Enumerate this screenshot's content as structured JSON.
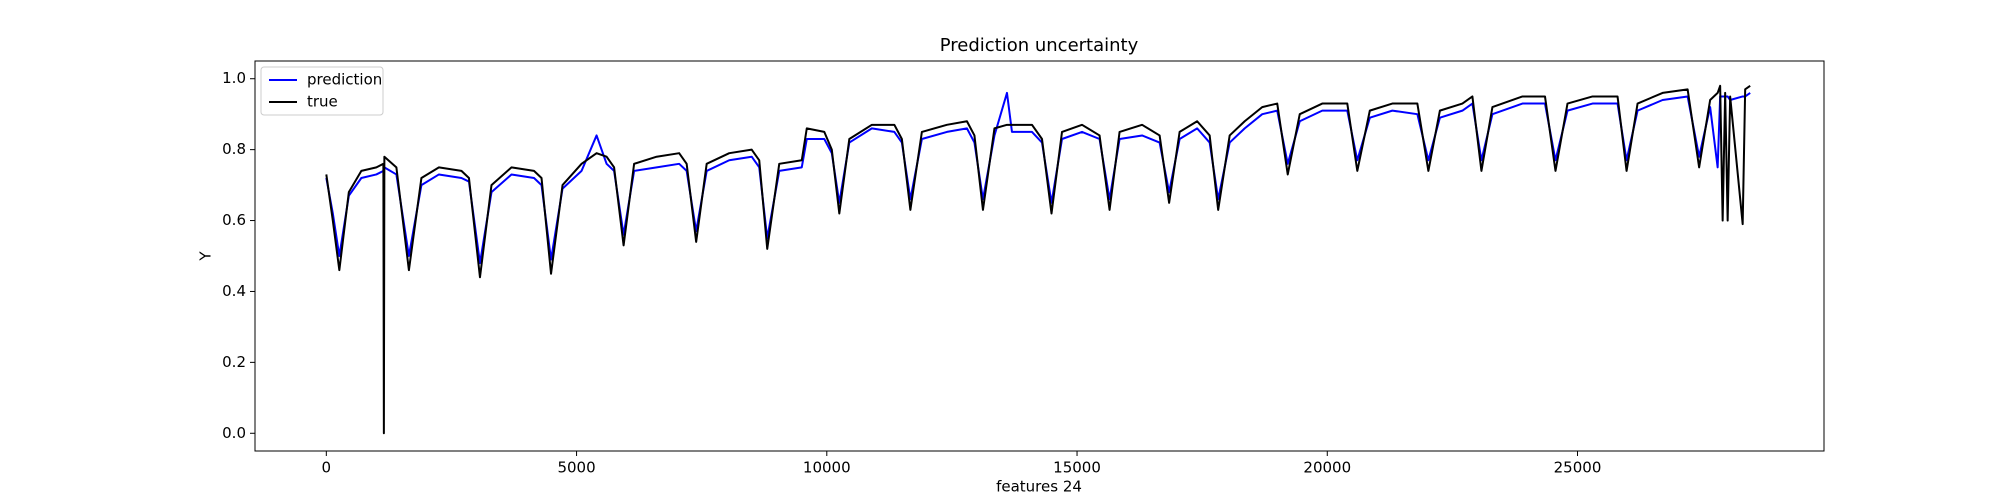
{
  "chart_data": {
    "type": "line",
    "title": "Prediction uncertainty",
    "x_label": "features 24",
    "y_label": "Y",
    "x": [
      0,
      130,
      260,
      450,
      700,
      1000,
      1140,
      1150,
      1160,
      1400,
      1650,
      1900,
      2250,
      2700,
      2850,
      3070,
      3300,
      3700,
      4150,
      4300,
      4490,
      4720,
      5100,
      5400,
      5600,
      5750,
      5940,
      6150,
      6600,
      7050,
      7200,
      7390,
      7600,
      8050,
      8500,
      8650,
      8810,
      9050,
      9500,
      9600,
      9950,
      10100,
      10250,
      10450,
      10900,
      11350,
      11500,
      11670,
      11900,
      12400,
      12800,
      12950,
      13120,
      13350,
      13600,
      13700,
      14100,
      14300,
      14490,
      14700,
      15100,
      15450,
      15650,
      15850,
      16300,
      16650,
      16840,
      17050,
      17400,
      17650,
      17820,
      18050,
      18350,
      18700,
      19000,
      19210,
      19450,
      19900,
      20400,
      20600,
      20850,
      21300,
      21800,
      22020,
      22250,
      22700,
      22900,
      23080,
      23300,
      23900,
      24350,
      24560,
      24800,
      25300,
      25800,
      25980,
      26200,
      26700,
      27200,
      27430,
      27650,
      27800,
      27850,
      27900,
      27950,
      28000,
      28050,
      28300,
      28350,
      28450
    ],
    "series": [
      {
        "name": "prediction",
        "color": "#0000ff",
        "values": [
          0.72,
          0.62,
          0.5,
          0.67,
          0.72,
          0.73,
          0.74,
          0.74,
          0.75,
          0.73,
          0.5,
          0.7,
          0.73,
          0.72,
          0.71,
          0.48,
          0.68,
          0.73,
          0.72,
          0.7,
          0.49,
          0.69,
          0.74,
          0.84,
          0.76,
          0.74,
          0.56,
          0.74,
          0.75,
          0.76,
          0.74,
          0.57,
          0.74,
          0.77,
          0.78,
          0.75,
          0.55,
          0.74,
          0.75,
          0.83,
          0.83,
          0.79,
          0.65,
          0.82,
          0.86,
          0.85,
          0.82,
          0.66,
          0.83,
          0.85,
          0.86,
          0.82,
          0.66,
          0.84,
          0.96,
          0.85,
          0.85,
          0.82,
          0.65,
          0.83,
          0.85,
          0.83,
          0.66,
          0.83,
          0.84,
          0.82,
          0.68,
          0.83,
          0.86,
          0.82,
          0.66,
          0.82,
          0.86,
          0.9,
          0.91,
          0.76,
          0.88,
          0.91,
          0.91,
          0.77,
          0.89,
          0.91,
          0.9,
          0.77,
          0.89,
          0.91,
          0.93,
          0.77,
          0.9,
          0.93,
          0.93,
          0.77,
          0.91,
          0.93,
          0.93,
          0.77,
          0.91,
          0.94,
          0.95,
          0.78,
          0.92,
          0.75,
          0.95,
          0.95,
          0.95,
          0.95,
          0.94,
          0.95,
          0.95,
          0.96
        ]
      },
      {
        "name": "true",
        "color": "#000000",
        "values": [
          0.73,
          0.6,
          0.46,
          0.68,
          0.74,
          0.75,
          0.76,
          0.0,
          0.78,
          0.75,
          0.46,
          0.72,
          0.75,
          0.74,
          0.72,
          0.44,
          0.7,
          0.75,
          0.74,
          0.72,
          0.45,
          0.7,
          0.76,
          0.79,
          0.78,
          0.75,
          0.53,
          0.76,
          0.78,
          0.79,
          0.76,
          0.54,
          0.76,
          0.79,
          0.8,
          0.77,
          0.52,
          0.76,
          0.77,
          0.86,
          0.85,
          0.8,
          0.62,
          0.83,
          0.87,
          0.87,
          0.83,
          0.63,
          0.85,
          0.87,
          0.88,
          0.84,
          0.63,
          0.86,
          0.87,
          0.87,
          0.87,
          0.83,
          0.62,
          0.85,
          0.87,
          0.84,
          0.63,
          0.85,
          0.87,
          0.84,
          0.65,
          0.85,
          0.88,
          0.84,
          0.63,
          0.84,
          0.88,
          0.92,
          0.93,
          0.73,
          0.9,
          0.93,
          0.93,
          0.74,
          0.91,
          0.93,
          0.93,
          0.74,
          0.91,
          0.93,
          0.95,
          0.74,
          0.92,
          0.95,
          0.95,
          0.74,
          0.93,
          0.95,
          0.95,
          0.74,
          0.93,
          0.96,
          0.97,
          0.75,
          0.94,
          0.96,
          0.98,
          0.6,
          0.96,
          0.6,
          0.95,
          0.59,
          0.97,
          0.98
        ]
      }
    ],
    "xlim": [
      -1425,
      29925
    ],
    "ylim": [
      -0.05,
      1.05
    ],
    "xticks": [
      0,
      5000,
      10000,
      15000,
      20000,
      25000
    ],
    "yticks": [
      {
        "value": 0,
        "label": "0.0"
      },
      0.2,
      0.4,
      0.6,
      0.8,
      {
        "value": 1,
        "label": "1.0"
      }
    ],
    "legend": "upper left"
  }
}
